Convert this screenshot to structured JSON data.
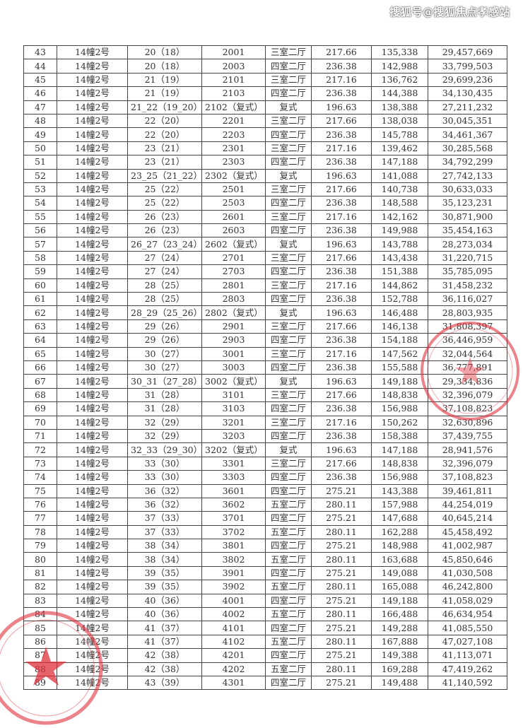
{
  "watermark": "搜狐号@搜狐焦点孝感站",
  "stamp_color": "#e0303c",
  "rows": [
    [
      "43",
      "14幢2号",
      "20（18）",
      "2001",
      "三室二厅",
      "217.66",
      "135,338",
      "29,457,669"
    ],
    [
      "44",
      "14幢2号",
      "20（18）",
      "2003",
      "四室二厅",
      "236.38",
      "142,988",
      "33,799,503"
    ],
    [
      "45",
      "14幢2号",
      "21（19）",
      "2101",
      "三室二厅",
      "217.16",
      "136,762",
      "29,699,236"
    ],
    [
      "46",
      "14幢2号",
      "21（19）",
      "2103",
      "四室二厅",
      "236.38",
      "144,388",
      "34,130,435"
    ],
    [
      "47",
      "14幢2号",
      "21_22（19_20）",
      "2102（复式）",
      "复式",
      "196.63",
      "138,388",
      "27,211,232"
    ],
    [
      "48",
      "14幢2号",
      "22（20）",
      "2201",
      "三室二厅",
      "217.66",
      "138,038",
      "30,045,351"
    ],
    [
      "49",
      "14幢2号",
      "22（20）",
      "2203",
      "四室二厅",
      "236.38",
      "145,788",
      "34,461,367"
    ],
    [
      "50",
      "14幢2号",
      "23（21）",
      "2301",
      "三室二厅",
      "217.16",
      "139,462",
      "30,285,568"
    ],
    [
      "51",
      "14幢2号",
      "23（21）",
      "2303",
      "四室二厅",
      "236.38",
      "147,188",
      "34,792,299"
    ],
    [
      "52",
      "14幢2号",
      "23_25（21_22）",
      "2302（复式）",
      "复式",
      "196.63",
      "141,088",
      "27,742,133"
    ],
    [
      "53",
      "14幢2号",
      "25（22）",
      "2501",
      "三室二厅",
      "217.66",
      "140,738",
      "30,633,033"
    ],
    [
      "54",
      "14幢2号",
      "25（22）",
      "2503",
      "四室二厅",
      "236.38",
      "148,588",
      "35,123,231"
    ],
    [
      "55",
      "14幢2号",
      "26（23）",
      "2601",
      "三室二厅",
      "217.16",
      "142,162",
      "30,871,900"
    ],
    [
      "56",
      "14幢2号",
      "26（23）",
      "2603",
      "四室二厅",
      "236.38",
      "149,988",
      "35,454,163"
    ],
    [
      "57",
      "14幢2号",
      "26_27（23_24）",
      "2602（复式）",
      "复式",
      "196.63",
      "143,788",
      "28,273,034"
    ],
    [
      "58",
      "14幢2号",
      "27（24）",
      "2701",
      "三室二厅",
      "217.66",
      "143,438",
      "31,220,715"
    ],
    [
      "59",
      "14幢2号",
      "27（24）",
      "2703",
      "四室二厅",
      "236.38",
      "151,388",
      "35,785,095"
    ],
    [
      "60",
      "14幢2号",
      "28（25）",
      "2801",
      "三室二厅",
      "217.16",
      "144,862",
      "31,458,232"
    ],
    [
      "61",
      "14幢2号",
      "28（25）",
      "2803",
      "四室二厅",
      "236.38",
      "152,788",
      "36,116,027"
    ],
    [
      "62",
      "14幢2号",
      "28_29（25_26）",
      "2802（复式）",
      "复式",
      "196.63",
      "146,488",
      "28,803,935"
    ],
    [
      "63",
      "14幢2号",
      "29（26）",
      "2901",
      "三室二厅",
      "217.66",
      "146,138",
      "31,808,397"
    ],
    [
      "64",
      "14幢2号",
      "29（26）",
      "2903",
      "四室二厅",
      "236.38",
      "154,188",
      "36,446,959"
    ],
    [
      "65",
      "14幢2号",
      "30（27）",
      "3001",
      "三室二厅",
      "217.16",
      "147,562",
      "32,044,564"
    ],
    [
      "66",
      "14幢2号",
      "30（27）",
      "3003",
      "四室二厅",
      "236.38",
      "155,588",
      "36,777,891"
    ],
    [
      "67",
      "14幢2号",
      "30_31（27_28）",
      "3002（复式）",
      "复式",
      "196.63",
      "149,188",
      "29,334,836"
    ],
    [
      "68",
      "14幢2号",
      "31（28）",
      "3101",
      "三室二厅",
      "217.66",
      "148,838",
      "32,396,079"
    ],
    [
      "69",
      "14幢2号",
      "31（28）",
      "3103",
      "四室二厅",
      "236.38",
      "156,988",
      "37,108,823"
    ],
    [
      "70",
      "14幢2号",
      "32（29）",
      "3201",
      "三室二厅",
      "217.16",
      "150,262",
      "32,630,896"
    ],
    [
      "71",
      "14幢2号",
      "32（29）",
      "3203",
      "四室二厅",
      "236.38",
      "158,388",
      "37,439,755"
    ],
    [
      "72",
      "14幢2号",
      "32_33（29_30）",
      "3202（复式）",
      "复式",
      "196.63",
      "147,188",
      "28,941,576"
    ],
    [
      "73",
      "14幢2号",
      "33（30）",
      "3301",
      "三室二厅",
      "217.66",
      "148,838",
      "32,396,079"
    ],
    [
      "74",
      "14幢2号",
      "33（30）",
      "3303",
      "四室二厅",
      "236.38",
      "156,988",
      "37,108,823"
    ],
    [
      "75",
      "14幢2号",
      "36（32）",
      "3601",
      "四室二厅",
      "275.21",
      "143,388",
      "39,461,811"
    ],
    [
      "76",
      "14幢2号",
      "36（32）",
      "3602",
      "五室二厅",
      "280.11",
      "157,988",
      "44,254,019"
    ],
    [
      "77",
      "14幢2号",
      "37（33）",
      "3701",
      "四室二厅",
      "275.21",
      "147,688",
      "40,645,214"
    ],
    [
      "78",
      "14幢2号",
      "37（33）",
      "3702",
      "五室二厅",
      "280.11",
      "162,288",
      "45,458,492"
    ],
    [
      "79",
      "14幢2号",
      "38（34）",
      "3801",
      "四室二厅",
      "275.21",
      "148,988",
      "41,002,987"
    ],
    [
      "80",
      "14幢2号",
      "38（34）",
      "3802",
      "五室二厅",
      "280.11",
      "163,688",
      "45,850,646"
    ],
    [
      "81",
      "14幢2号",
      "39（35）",
      "3901",
      "四室二厅",
      "275.21",
      "149,088",
      "41,030,508"
    ],
    [
      "82",
      "14幢2号",
      "39（35）",
      "3902",
      "五室二厅",
      "280.11",
      "165,088",
      "46,242,800"
    ],
    [
      "83",
      "14幢2号",
      "40（36）",
      "4001",
      "四室二厅",
      "275.21",
      "149,188",
      "41,058,029"
    ],
    [
      "84",
      "14幢2号",
      "40（36）",
      "4002",
      "五室二厅",
      "280.11",
      "166,488",
      "46,634,954"
    ],
    [
      "85",
      "14幢2号",
      "41（37）",
      "4101",
      "四室二厅",
      "275.21",
      "149,288",
      "41,085,550"
    ],
    [
      "86",
      "14幢2号",
      "41（37）",
      "4102",
      "五室二厅",
      "280.11",
      "167,888",
      "47,027,108"
    ],
    [
      "87",
      "14幢2号",
      "42（38）",
      "4201",
      "四室二厅",
      "275.21",
      "149,388",
      "41,113,071"
    ],
    [
      "88",
      "14幢2号",
      "42（38）",
      "4202",
      "五室二厅",
      "280.11",
      "169,288",
      "47,419,262"
    ],
    [
      "89",
      "14幢2号",
      "43（39）",
      "4301",
      "四室二厅",
      "275.21",
      "149,488",
      "41,140,592"
    ]
  ]
}
